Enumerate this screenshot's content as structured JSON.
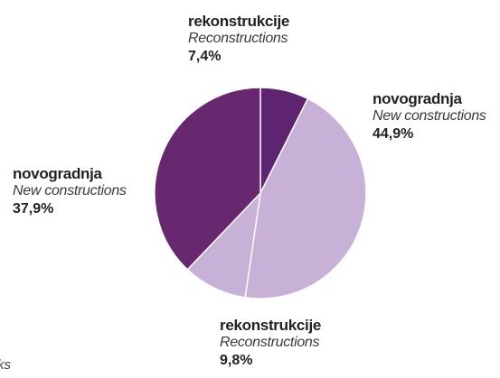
{
  "chart_data": {
    "type": "pie",
    "title": "",
    "slices": [
      {
        "label": "rekonstrukcije",
        "label_en": "Reconstructions",
        "value": 7.4,
        "value_text": "7,4%",
        "color": "#5e2470"
      },
      {
        "label": "novogradnja",
        "label_en": "New constructions",
        "value": 44.9,
        "value_text": "44,9%",
        "color": "#c8b1d6"
      },
      {
        "label": "rekonstrukcije",
        "label_en": "Reconstructions",
        "value": 9.8,
        "value_text": "9,8%",
        "color": "#c8b1d6"
      },
      {
        "label": "novogradnja",
        "label_en": "New constructions",
        "value": 37.9,
        "value_text": "37,9%",
        "color": "#67286f"
      }
    ],
    "slice_separator_color": "#ffffff",
    "start_angle": "top",
    "direction": "clockwise"
  },
  "footer": {
    "partial_text": "rks"
  }
}
